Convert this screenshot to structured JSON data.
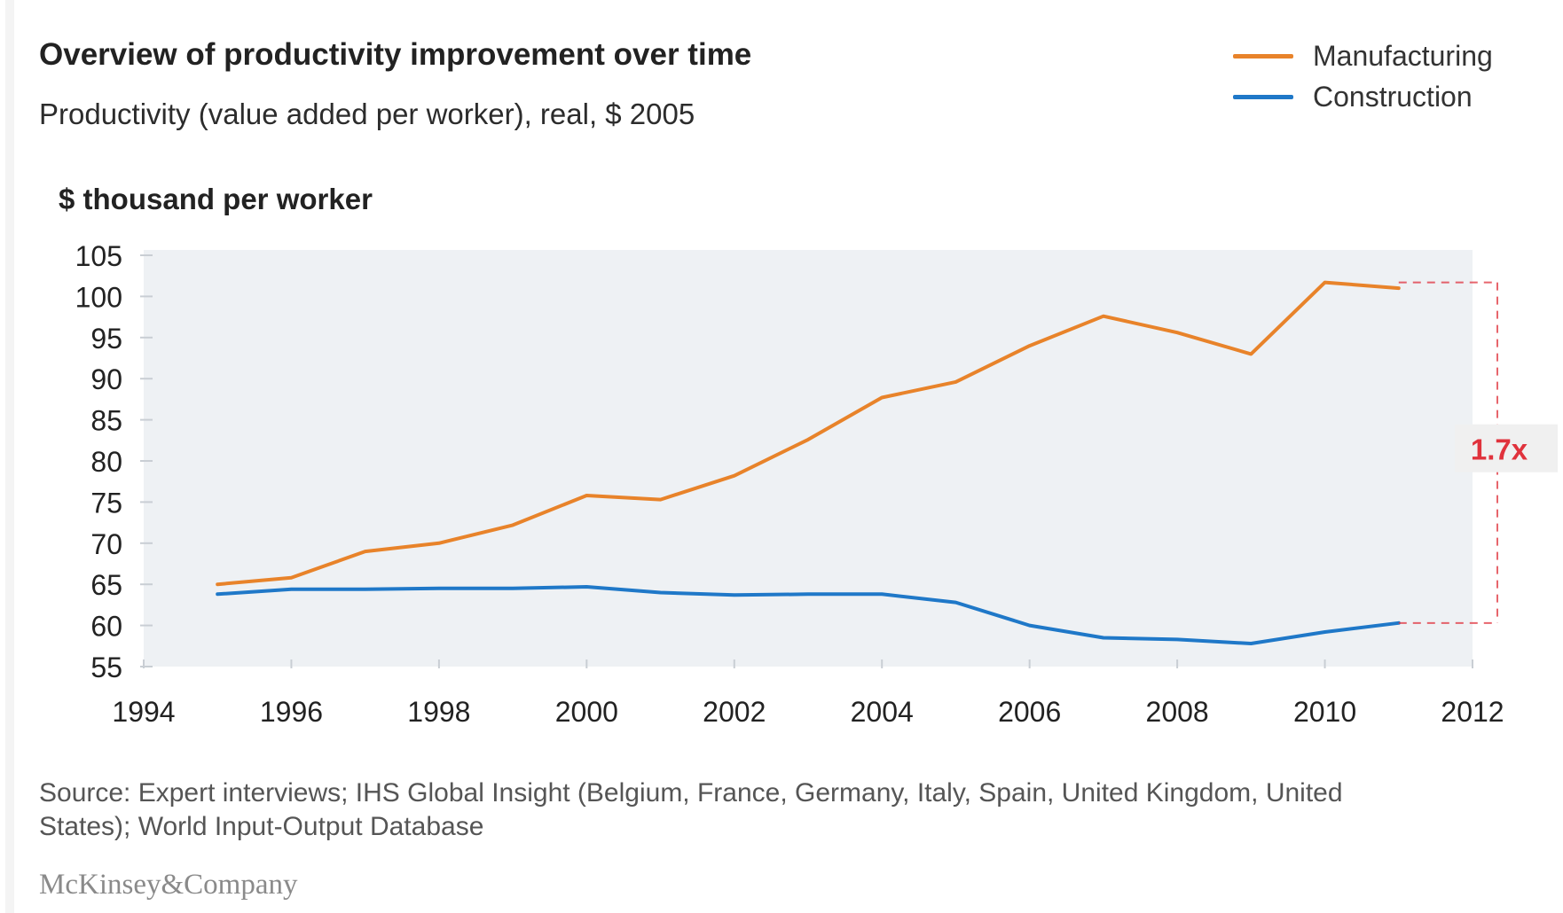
{
  "title": "Overview of productivity improvement over time",
  "subtitle": "Productivity (value added per worker), real, $ 2005",
  "unit_label": "$ thousand per worker",
  "legend": [
    {
      "label": "Manufacturing",
      "color": "#e8832a"
    },
    {
      "label": "Construction",
      "color": "#1f78c8"
    }
  ],
  "annotation": {
    "label": "1.7x",
    "color": "#e0323c"
  },
  "source": "Source: Expert interviews; IHS Global Insight (Belgium, France, Germany, Italy, Spain, United Kingdom, United States); World Input-Output Database",
  "logo": "McKinsey&Company",
  "chart_data": {
    "type": "line",
    "title": "Overview of productivity improvement over time",
    "subtitle": "Productivity (value added per worker), real, $ 2005",
    "ylabel": "$ thousand per worker",
    "xlabel": "",
    "xlim": [
      1994,
      2012
    ],
    "ylim": [
      55,
      105
    ],
    "x_ticks": [
      1994,
      1996,
      1998,
      2000,
      2002,
      2004,
      2006,
      2008,
      2010,
      2012
    ],
    "y_ticks": [
      55,
      60,
      65,
      70,
      75,
      80,
      85,
      90,
      95,
      100,
      105
    ],
    "grid": false,
    "legend_position": "top-right",
    "x": [
      1995,
      1996,
      1997,
      1998,
      1999,
      2000,
      2001,
      2002,
      2003,
      2004,
      2005,
      2006,
      2007,
      2008,
      2009,
      2010,
      2011
    ],
    "series": [
      {
        "name": "Manufacturing",
        "color": "#e8832a",
        "values": [
          65.0,
          65.8,
          69.0,
          70.0,
          72.2,
          75.8,
          75.3,
          78.2,
          82.6,
          87.7,
          89.6,
          94.0,
          97.6,
          95.6,
          93.0,
          101.7,
          101.0
        ]
      },
      {
        "name": "Construction",
        "color": "#1f78c8",
        "values": [
          63.8,
          64.4,
          64.4,
          64.5,
          64.5,
          64.7,
          64.0,
          63.7,
          63.8,
          63.8,
          62.8,
          60.0,
          58.5,
          58.3,
          57.8,
          59.2,
          60.3
        ]
      }
    ],
    "annotation": {
      "text": "1.7x",
      "x": 2011,
      "from_series": "Construction",
      "to_series": "Manufacturing"
    }
  }
}
